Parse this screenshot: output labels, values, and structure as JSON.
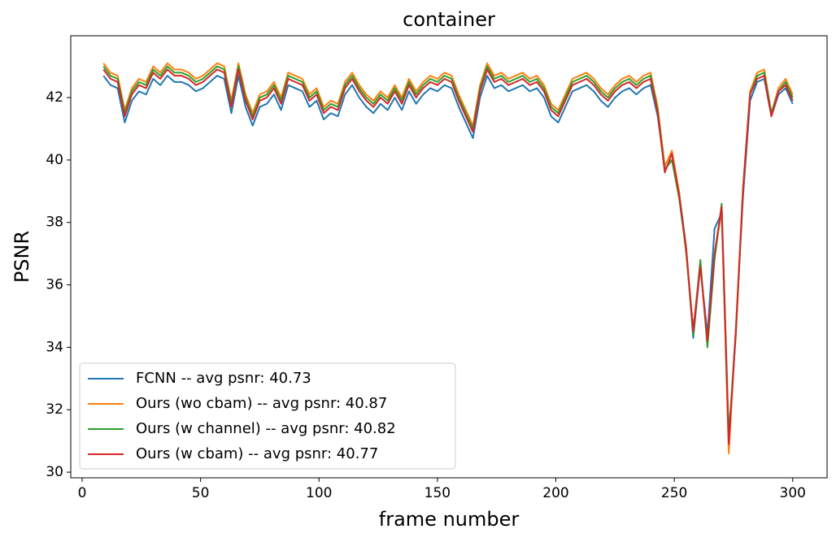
{
  "chart_data": {
    "type": "line",
    "title": "container",
    "xlabel": "frame number",
    "ylabel": "PSNR",
    "x": [
      9,
      12,
      15,
      18,
      21,
      24,
      27,
      30,
      33,
      36,
      39,
      42,
      45,
      48,
      51,
      54,
      57,
      60,
      63,
      66,
      69,
      72,
      75,
      78,
      81,
      84,
      87,
      90,
      93,
      96,
      99,
      102,
      105,
      108,
      111,
      114,
      117,
      120,
      123,
      126,
      129,
      132,
      135,
      138,
      141,
      144,
      147,
      150,
      153,
      156,
      159,
      162,
      165,
      168,
      171,
      174,
      177,
      180,
      183,
      186,
      189,
      192,
      195,
      198,
      201,
      204,
      207,
      210,
      213,
      216,
      219,
      222,
      225,
      228,
      231,
      234,
      237,
      240,
      243,
      246,
      249,
      252,
      255,
      258,
      261,
      264,
      267,
      270,
      273,
      276,
      279,
      282,
      285,
      288,
      291,
      294,
      297,
      300
    ],
    "series": [
      {
        "name": "FCNN -- avg psnr: 40.73",
        "color": "#1f77b4",
        "values": [
          42.7,
          42.4,
          42.3,
          41.2,
          41.9,
          42.2,
          42.1,
          42.6,
          42.4,
          42.7,
          42.5,
          42.5,
          42.4,
          42.2,
          42.3,
          42.5,
          42.7,
          42.6,
          41.5,
          42.7,
          41.7,
          41.1,
          41.7,
          41.8,
          42.1,
          41.6,
          42.4,
          42.3,
          42.2,
          41.7,
          41.9,
          41.3,
          41.5,
          41.4,
          42.1,
          42.4,
          42.0,
          41.7,
          41.5,
          41.8,
          41.6,
          42.0,
          41.6,
          42.2,
          41.8,
          42.1,
          42.3,
          42.2,
          42.4,
          42.3,
          41.7,
          41.2,
          40.7,
          42.0,
          42.7,
          42.3,
          42.4,
          42.2,
          42.3,
          42.4,
          42.2,
          42.3,
          42.0,
          41.4,
          41.2,
          41.7,
          42.2,
          42.3,
          42.4,
          42.2,
          41.9,
          41.7,
          42.0,
          42.2,
          42.3,
          42.1,
          42.3,
          42.4,
          41.4,
          39.7,
          40.0,
          39.0,
          37.2,
          34.3,
          36.6,
          34.4,
          37.8,
          38.3,
          31.0,
          34.6,
          38.8,
          41.9,
          42.5,
          42.6,
          41.4,
          42.1,
          42.3,
          41.8
        ]
      },
      {
        "name": "Ours (wo cbam) -- avg psnr: 40.87",
        "color": "#ff7f0e",
        "values": [
          43.1,
          42.8,
          42.7,
          41.6,
          42.3,
          42.6,
          42.5,
          43.0,
          42.8,
          43.1,
          42.9,
          42.9,
          42.8,
          42.6,
          42.7,
          42.9,
          43.1,
          43.0,
          41.9,
          43.1,
          42.1,
          41.5,
          42.1,
          42.2,
          42.5,
          42.0,
          42.8,
          42.7,
          42.6,
          42.1,
          42.3,
          41.7,
          41.9,
          41.8,
          42.5,
          42.8,
          42.4,
          42.1,
          41.9,
          42.2,
          42.0,
          42.4,
          42.0,
          42.6,
          42.2,
          42.5,
          42.7,
          42.6,
          42.8,
          42.7,
          42.1,
          41.6,
          41.1,
          42.4,
          43.1,
          42.7,
          42.8,
          42.6,
          42.7,
          42.8,
          42.6,
          42.7,
          42.4,
          41.8,
          41.6,
          42.1,
          42.6,
          42.7,
          42.8,
          42.6,
          42.3,
          42.1,
          42.4,
          42.6,
          42.7,
          42.5,
          42.7,
          42.8,
          41.7,
          39.8,
          40.3,
          39.0,
          37.0,
          34.6,
          36.7,
          34.1,
          36.9,
          38.4,
          30.6,
          34.6,
          39.1,
          42.2,
          42.8,
          42.9,
          41.5,
          42.3,
          42.6,
          42.1
        ]
      },
      {
        "name": "Ours (w channel) -- avg psnr: 40.82",
        "color": "#2ca02c",
        "values": [
          43.0,
          42.7,
          42.6,
          41.5,
          42.2,
          42.5,
          42.4,
          42.9,
          42.7,
          43.0,
          42.8,
          42.8,
          42.7,
          42.5,
          42.6,
          42.8,
          43.0,
          42.9,
          41.8,
          43.0,
          42.0,
          41.4,
          42.0,
          42.1,
          42.4,
          41.9,
          42.7,
          42.6,
          42.5,
          42.0,
          42.2,
          41.6,
          41.8,
          41.7,
          42.4,
          42.7,
          42.3,
          42.0,
          41.8,
          42.1,
          41.9,
          42.3,
          41.9,
          42.5,
          42.1,
          42.4,
          42.6,
          42.5,
          42.7,
          42.6,
          42.0,
          41.5,
          41.0,
          42.3,
          43.0,
          42.6,
          42.7,
          42.5,
          42.6,
          42.7,
          42.5,
          42.6,
          42.3,
          41.7,
          41.5,
          42.0,
          42.5,
          42.6,
          42.7,
          42.5,
          42.2,
          42.0,
          42.3,
          42.5,
          42.6,
          42.4,
          42.6,
          42.7,
          41.6,
          39.7,
          40.0,
          38.8,
          37.1,
          34.4,
          36.8,
          34.0,
          36.8,
          38.6,
          31.2,
          34.4,
          39.0,
          42.1,
          42.7,
          42.8,
          41.5,
          42.2,
          42.5,
          42.0
        ]
      },
      {
        "name": "Ours (w cbam) -- avg psnr: 40.77",
        "color": "#d62728",
        "values": [
          42.9,
          42.6,
          42.5,
          41.4,
          42.1,
          42.4,
          42.3,
          42.8,
          42.6,
          42.9,
          42.7,
          42.7,
          42.6,
          42.4,
          42.5,
          42.7,
          42.9,
          42.8,
          41.7,
          42.9,
          41.9,
          41.3,
          41.9,
          42.0,
          42.3,
          41.8,
          42.6,
          42.5,
          42.4,
          41.9,
          42.1,
          41.5,
          41.7,
          41.6,
          42.3,
          42.6,
          42.2,
          41.9,
          41.7,
          42.0,
          41.8,
          42.2,
          41.8,
          42.4,
          42.0,
          42.3,
          42.5,
          42.4,
          42.6,
          42.5,
          41.9,
          41.4,
          40.9,
          42.2,
          42.9,
          42.5,
          42.6,
          42.4,
          42.5,
          42.6,
          42.4,
          42.5,
          42.2,
          41.6,
          41.4,
          41.9,
          42.4,
          42.5,
          42.6,
          42.4,
          42.1,
          41.9,
          42.2,
          42.4,
          42.5,
          42.3,
          42.5,
          42.6,
          41.5,
          39.6,
          40.2,
          38.9,
          37.2,
          34.5,
          36.6,
          34.2,
          37.0,
          38.5,
          30.9,
          34.5,
          39.0,
          42.1,
          42.6,
          42.7,
          41.4,
          42.2,
          42.4,
          41.9
        ]
      }
    ],
    "xlim": [
      -4.8,
      314.5
    ],
    "ylim": [
      29.82,
      43.98
    ],
    "xticks": [
      0,
      50,
      100,
      150,
      200,
      250,
      300
    ],
    "yticks": [
      30,
      32,
      34,
      36,
      38,
      40,
      42
    ],
    "grid": false,
    "legend": "lower left"
  }
}
